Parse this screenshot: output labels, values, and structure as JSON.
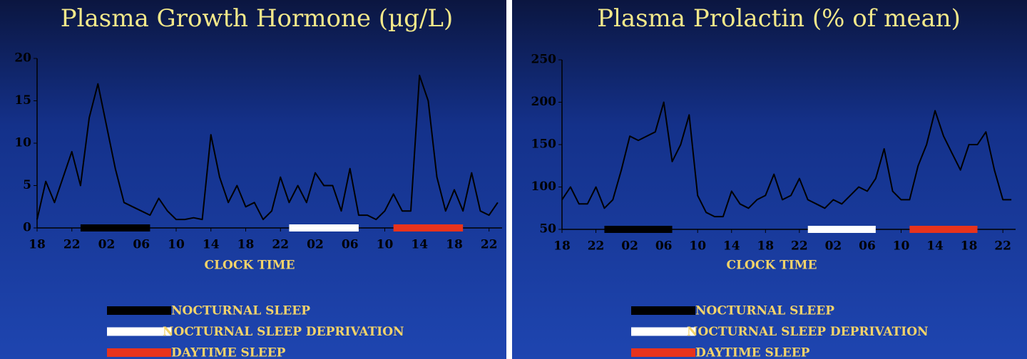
{
  "chart_data": [
    {
      "type": "line",
      "title": "Plasma Growth Hormone (µg/L)",
      "xlabel": "CLOCK TIME",
      "x": [
        18,
        19,
        20,
        21,
        22,
        23,
        24,
        25,
        26,
        27,
        28,
        29,
        30,
        31,
        32,
        33,
        34,
        35,
        36,
        37,
        38,
        39,
        40,
        41,
        42,
        43,
        44,
        45,
        46,
        47,
        48,
        49,
        50,
        51,
        52,
        53,
        54,
        55,
        56,
        57,
        58,
        59,
        60,
        61,
        62,
        63,
        64,
        65,
        66,
        67,
        68,
        69,
        70,
        71
      ],
      "series": [
        {
          "color": "#000000",
          "values": [
            1,
            5.5,
            3,
            6,
            9,
            5,
            13,
            17,
            12,
            7,
            3,
            2.5,
            2,
            1.5,
            3.5,
            2,
            1,
            1,
            1.2,
            1,
            11,
            6,
            3,
            5,
            2.5,
            3,
            1,
            2,
            6,
            3,
            5,
            3,
            6.5,
            5,
            5,
            2,
            7,
            1.5,
            1.5,
            1,
            2,
            4,
            2,
            2,
            18,
            15,
            6,
            2,
            4.5,
            2,
            6.5,
            2,
            1.5,
            3
          ]
        }
      ],
      "bands": [
        {
          "name": "NOCTURNAL SLEEP",
          "color": "#000000",
          "start": 23,
          "end": 31
        },
        {
          "name": "NOCTURNAL SLEEP DEPRIVATION",
          "color": "#ffffff",
          "start": 47,
          "end": 55
        },
        {
          "name": "DAYTIME SLEEP",
          "color": "#e8331c",
          "start": 59,
          "end": 67
        }
      ],
      "xlim": [
        18,
        71.5
      ],
      "xticks": [
        18,
        22,
        {
          "value": 26,
          "label": "02"
        },
        {
          "value": 30,
          "label": "06"
        },
        {
          "value": 34,
          "label": "10"
        },
        {
          "value": 38,
          "label": "14"
        },
        {
          "value": 42,
          "label": "18"
        },
        {
          "value": 46,
          "label": "22"
        },
        {
          "value": 50,
          "label": "02"
        },
        {
          "value": 54,
          "label": "06"
        },
        {
          "value": 58,
          "label": "10"
        },
        {
          "value": 62,
          "label": "14"
        },
        {
          "value": 66,
          "label": "18"
        },
        {
          "value": 70,
          "label": "22"
        }
      ],
      "ylim": [
        0,
        20
      ],
      "yticks": [
        0,
        5,
        10,
        15,
        20
      ]
    },
    {
      "type": "line",
      "title": "Plasma Prolactin (% of mean)",
      "xlabel": "CLOCK TIME",
      "x": [
        18,
        19,
        20,
        21,
        22,
        23,
        24,
        25,
        26,
        27,
        28,
        29,
        30,
        31,
        32,
        33,
        34,
        35,
        36,
        37,
        38,
        39,
        40,
        41,
        42,
        43,
        44,
        45,
        46,
        47,
        48,
        49,
        50,
        51,
        52,
        53,
        54,
        55,
        56,
        57,
        58,
        59,
        60,
        61,
        62,
        63,
        64,
        65,
        66,
        67,
        68,
        69,
        70,
        71
      ],
      "series": [
        {
          "color": "#000000",
          "values": [
            85,
            100,
            80,
            80,
            100,
            75,
            85,
            120,
            160,
            155,
            160,
            165,
            200,
            130,
            150,
            185,
            90,
            70,
            65,
            65,
            95,
            80,
            75,
            85,
            90,
            115,
            85,
            90,
            110,
            85,
            80,
            75,
            85,
            80,
            90,
            100,
            95,
            110,
            145,
            95,
            85,
            85,
            125,
            150,
            190,
            160,
            140,
            120,
            150,
            150,
            165,
            120,
            85,
            85
          ]
        }
      ],
      "bands": [
        {
          "name": "NOCTURNAL SLEEP",
          "color": "#000000",
          "start": 23,
          "end": 31
        },
        {
          "name": "NOCTURNAL SLEEP DEPRIVATION",
          "color": "#ffffff",
          "start": 47,
          "end": 55
        },
        {
          "name": "DAYTIME SLEEP",
          "color": "#e8331c",
          "start": 59,
          "end": 67
        }
      ],
      "xlim": [
        18,
        71.5
      ],
      "xticks": [
        18,
        22,
        {
          "value": 26,
          "label": "02"
        },
        {
          "value": 30,
          "label": "06"
        },
        {
          "value": 34,
          "label": "10"
        },
        {
          "value": 38,
          "label": "14"
        },
        {
          "value": 42,
          "label": "18"
        },
        {
          "value": 46,
          "label": "22"
        },
        {
          "value": 50,
          "label": "02"
        },
        {
          "value": 54,
          "label": "06"
        },
        {
          "value": 58,
          "label": "10"
        },
        {
          "value": 62,
          "label": "14"
        },
        {
          "value": 66,
          "label": "18"
        },
        {
          "value": 70,
          "label": "22"
        }
      ],
      "ylim": [
        50,
        250
      ],
      "yticks": [
        50,
        100,
        150,
        200,
        250
      ]
    }
  ]
}
